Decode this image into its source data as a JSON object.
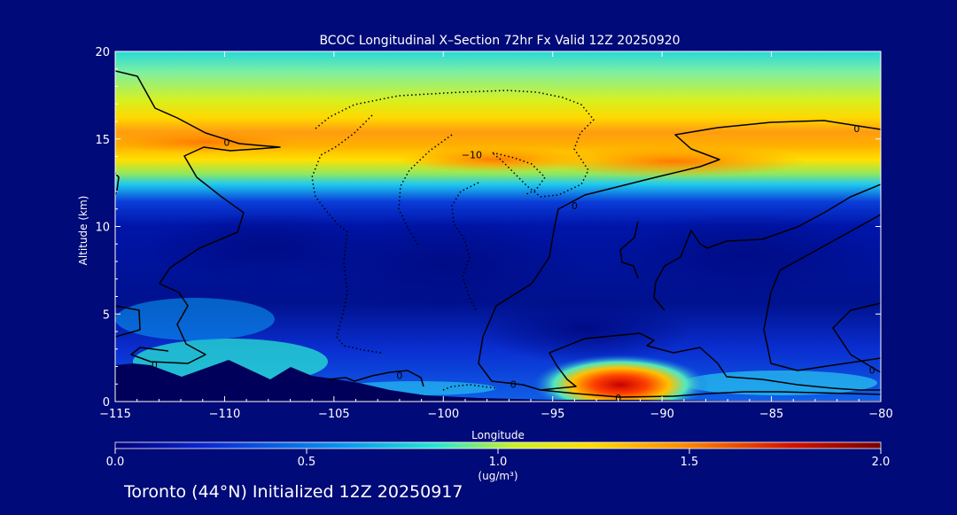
{
  "chart_data": {
    "type": "heatmap",
    "title": "BCOC Longitudinal X–Section 72hr  Fx Valid 12Z 20250920",
    "xlabel": "Longitude",
    "ylabel": "Altitude (km)",
    "xlim": [
      -115,
      -80
    ],
    "ylim": [
      0,
      20
    ],
    "x_ticks": [
      -115,
      -110,
      -105,
      -100,
      -95,
      -90,
      -85,
      -80
    ],
    "x_tick_labels": [
      "−115",
      "−110",
      "−105",
      "−100",
      "−95",
      "−90",
      "−85",
      "−80"
    ],
    "y_ticks": [
      0,
      5,
      10,
      15,
      20
    ],
    "y_tick_labels": [
      "0",
      "5",
      "10",
      "15",
      "20"
    ],
    "contour_labels": [
      {
        "text": "0",
        "x": -109.9,
        "y": 14.8
      },
      {
        "text": "0",
        "x": -81.1,
        "y": 15.6
      },
      {
        "text": "−10",
        "x": -98.7,
        "y": 14.1
      },
      {
        "text": "0",
        "x": -94.0,
        "y": 11.2
      },
      {
        "text": "0",
        "x": -113.2,
        "y": 2.1
      },
      {
        "text": "0",
        "x": -102.0,
        "y": 1.5
      },
      {
        "text": "0",
        "x": -96.8,
        "y": 1.0
      },
      {
        "text": "0",
        "x": -92.0,
        "y": 0.2
      },
      {
        "text": "0",
        "x": -80.4,
        "y": 1.8
      }
    ],
    "colorbar": {
      "min": 0.0,
      "max": 2.0,
      "ticks": [
        0.0,
        0.5,
        1.0,
        1.5,
        2.0
      ],
      "tick_labels": [
        "0.0",
        "0.5",
        "1.0",
        "1.5",
        "2.0"
      ],
      "unit_label": "(ug/m³)"
    },
    "colormap": [
      "#00007a",
      "#0a28d2",
      "#0a96f0",
      "#28e6d2",
      "#c8f028",
      "#ffdc00",
      "#ff8c00",
      "#d21400",
      "#780000"
    ],
    "features": [
      {
        "layer": "upper maximum",
        "altitude_km": [
          13.5,
          15.2
        ],
        "value_approx": 1.35
      },
      {
        "layer": "surface maximum",
        "longitude": -92,
        "altitude_km": 1.1,
        "value_approx": 1.9
      }
    ]
  },
  "footer": {
    "caption": "Toronto (44°N) Initialized 12Z 20250917"
  }
}
